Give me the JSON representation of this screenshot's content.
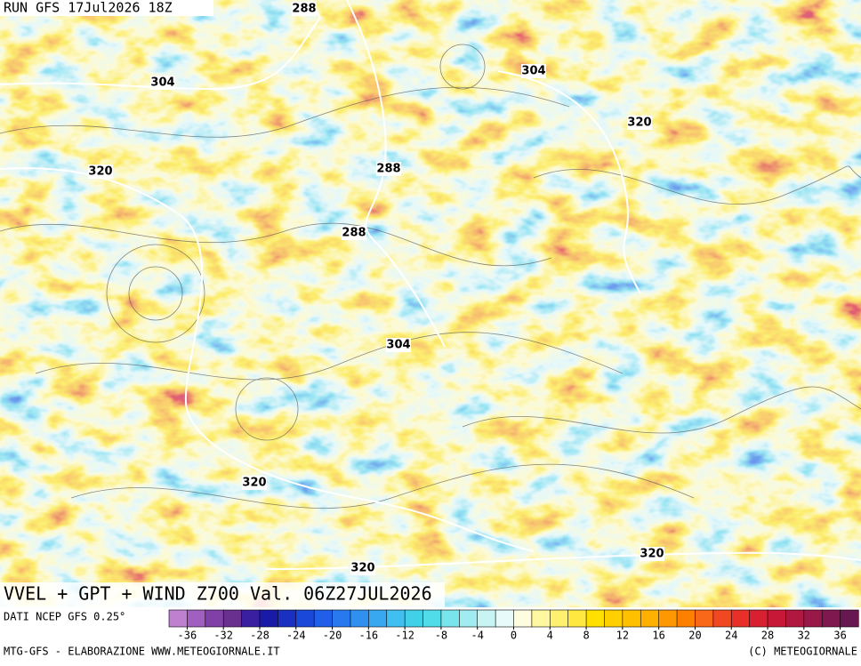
{
  "header": {
    "run": "RUN GFS 17Jul2026 18Z",
    "title": "VVEL + GPT + WIND Z700 Val. 06Z27JUL2026"
  },
  "contour_labels": [
    288,
    304,
    320,
    288,
    288,
    304,
    320,
    304,
    320,
    320,
    320
  ],
  "colorbar": {
    "source": "DATI NCEP GFS 0.25°",
    "clim": [
      -38,
      38
    ],
    "colors": [
      "#c080d0",
      "#a060c0",
      "#8040a8",
      "#6a3090",
      "#3a20a0",
      "#1a1aa8",
      "#1a30c0",
      "#1a48d8",
      "#2060e8",
      "#2878f0",
      "#3090f0",
      "#38a8f0",
      "#40c0f0",
      "#40d0e8",
      "#50dce8",
      "#78e4ec",
      "#a0ecf0",
      "#c8f4f4",
      "#e8fafa",
      "#fffde0",
      "#fff8a0",
      "#fff070",
      "#ffe840",
      "#ffe000",
      "#ffd000",
      "#ffc000",
      "#ffb000",
      "#ff9800",
      "#ff8000",
      "#f86818",
      "#f04820",
      "#e83028",
      "#d82030",
      "#c81838",
      "#b01840",
      "#981848",
      "#801850",
      "#681850"
    ],
    "ticks": [
      -36,
      -32,
      -28,
      -24,
      -20,
      -16,
      -12,
      -8,
      -4,
      0,
      4,
      8,
      12,
      16,
      20,
      24,
      28,
      32,
      36
    ]
  },
  "footer": {
    "left": "MTG-GFS - ELABORAZIONE WWW.METEOGIORNALE.IT",
    "right": "(C) METEOGIORNALE"
  }
}
